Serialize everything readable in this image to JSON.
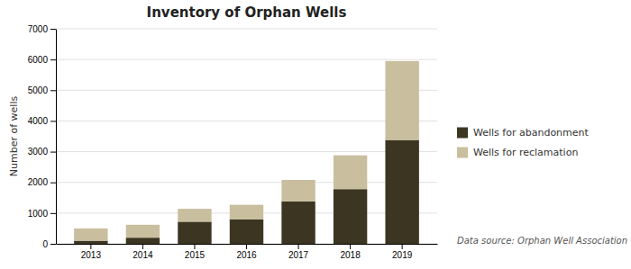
{
  "chart_data": {
    "type": "bar",
    "stacked": true,
    "title": "Inventory of Orphan Wells",
    "ylabel": "Number of wells",
    "categories": [
      "2013",
      "2014",
      "2015",
      "2016",
      "2017",
      "2018",
      "2019"
    ],
    "series": [
      {
        "name": "Wells for abandonment",
        "color": "#3b3522",
        "values": [
          100,
          200,
          720,
          800,
          1380,
          1780,
          3380
        ]
      },
      {
        "name": "Wells for reclamation",
        "color": "#c9be9e",
        "values": [
          400,
          420,
          420,
          470,
          700,
          1100,
          2570
        ]
      }
    ],
    "ylim": [
      0,
      7000
    ],
    "yticks": [
      0,
      1000,
      2000,
      3000,
      4000,
      5000,
      6000,
      7000
    ],
    "grid": true,
    "legend": "right",
    "annotations": [
      "Data source: Orphan Well Association"
    ]
  }
}
